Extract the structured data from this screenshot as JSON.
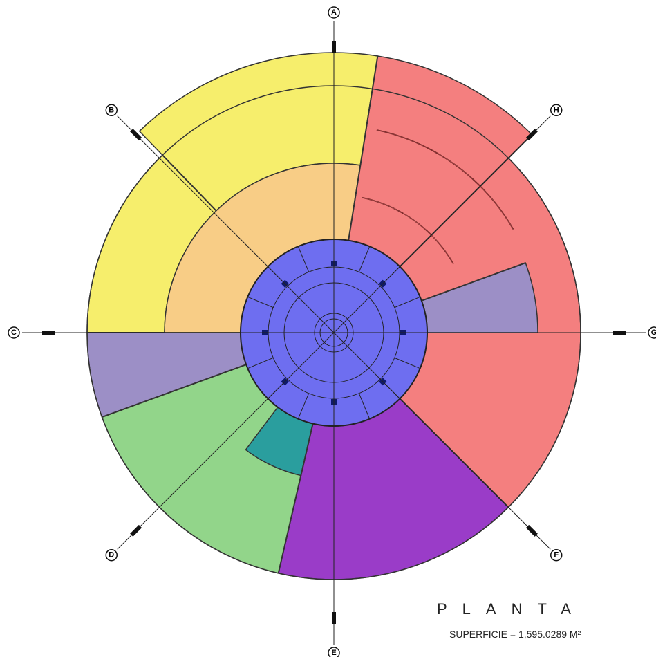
{
  "axes": {
    "a": "A",
    "b": "B",
    "c": "C",
    "d": "D",
    "e": "E",
    "f": "F",
    "g": "G",
    "h": "H"
  },
  "title": "PLANTA A",
  "area": "SUPERFICIE = 1,595.0289 M²"
}
